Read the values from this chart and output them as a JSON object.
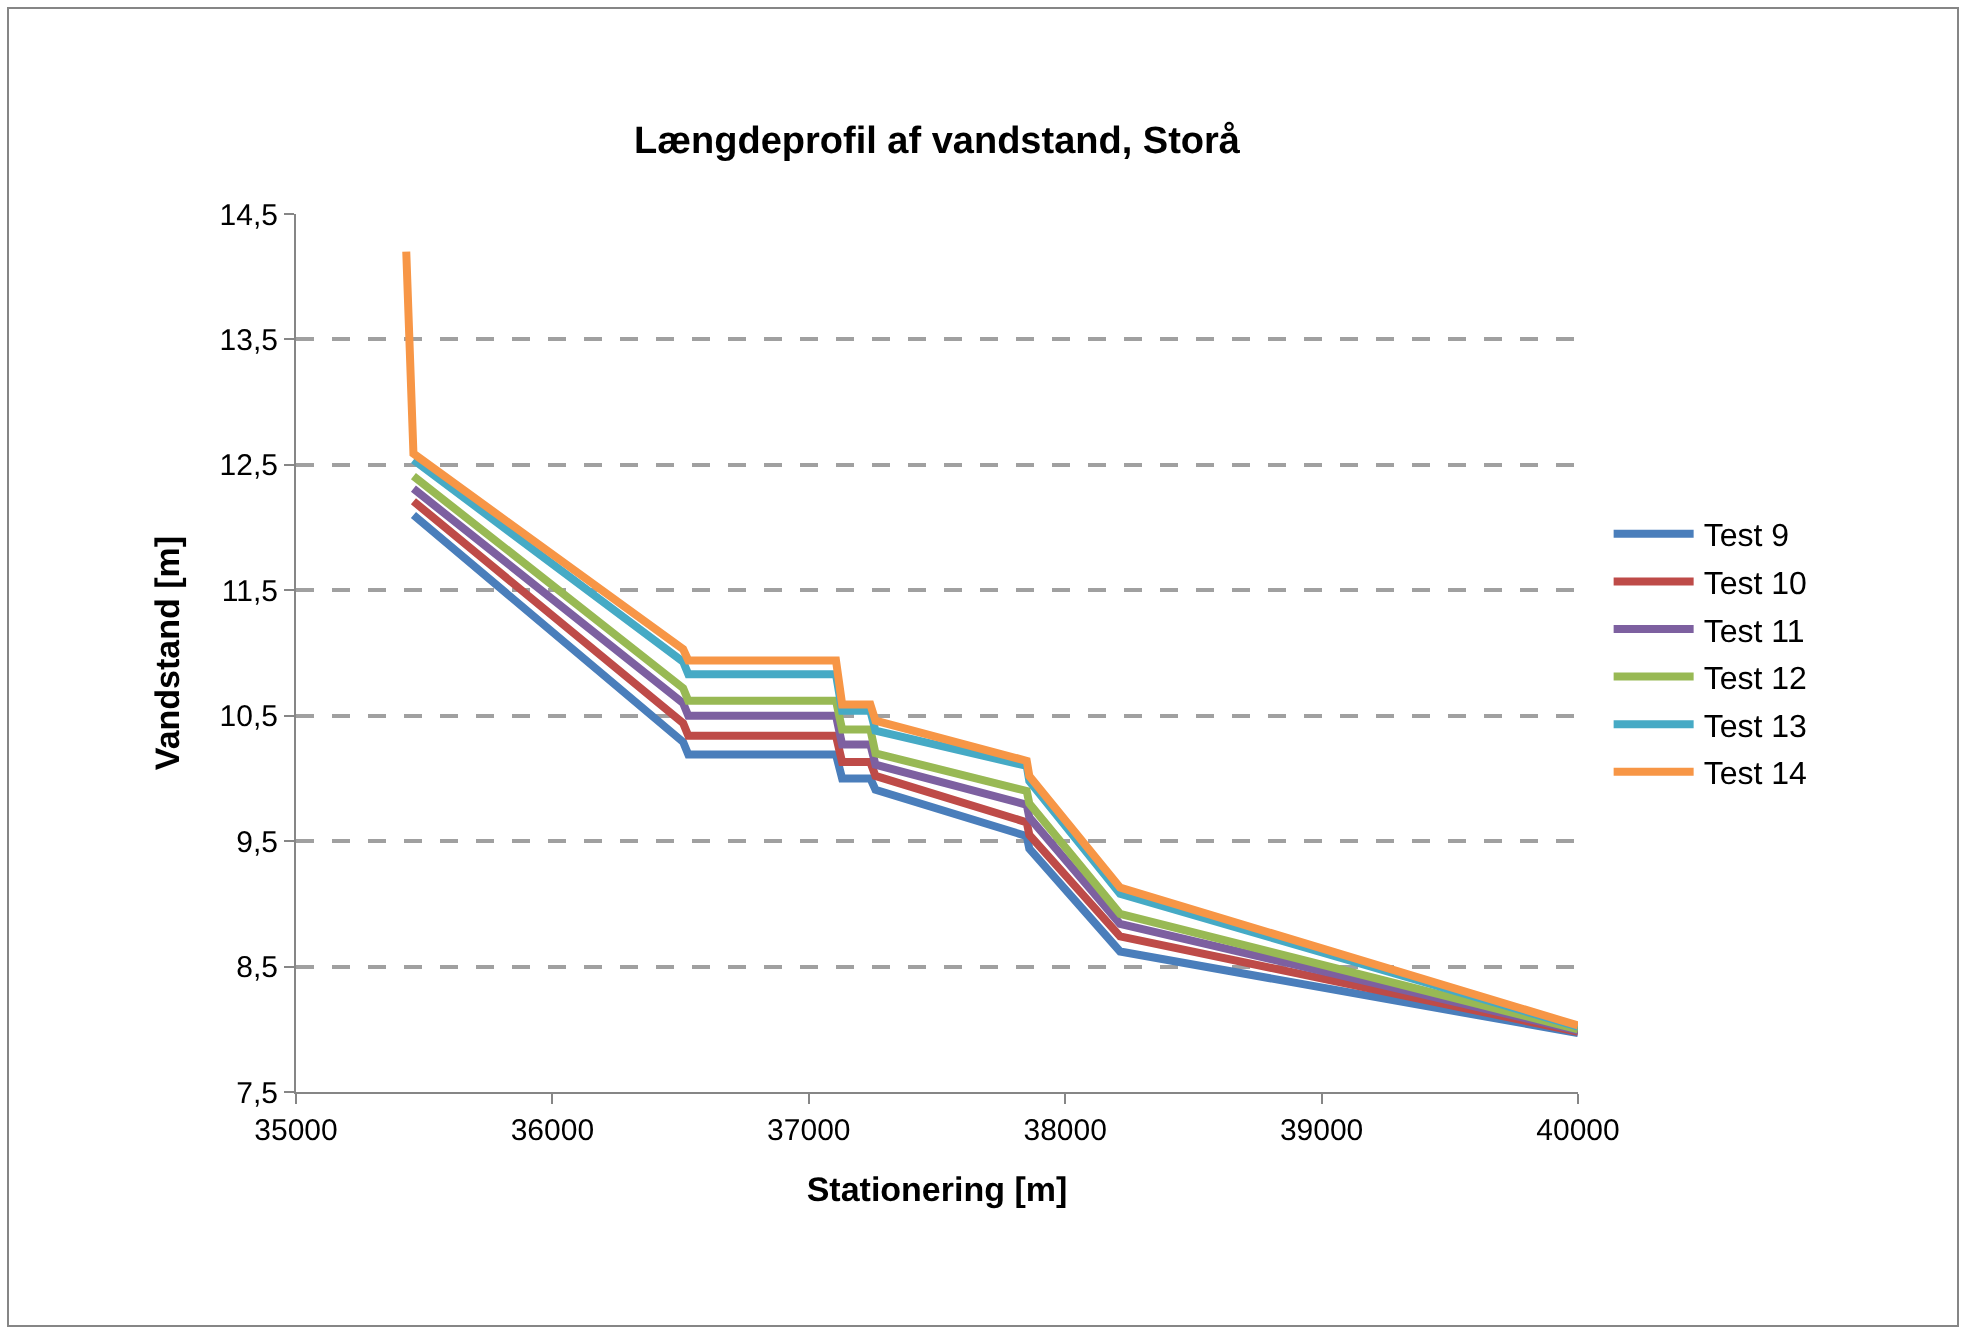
{
  "chart_data": {
    "type": "line",
    "title": "Længdeprofil af vandstand, Storå",
    "xlabel": "Stationering [m]",
    "ylabel": "Vandstand [m]",
    "x": [
      35430,
      35458,
      36510,
      36530,
      37106,
      37130,
      37240,
      37260,
      37850,
      37860,
      38214,
      40000
    ],
    "series": [
      {
        "name": "Test 9",
        "color": "#4a7ebb",
        "values": [
          null,
          12.1,
          10.29,
          10.19,
          10.19,
          10.0,
          10.0,
          9.91,
          9.54,
          9.44,
          8.62,
          7.97
        ]
      },
      {
        "name": "Test 10",
        "color": "#be4b48",
        "values": [
          null,
          12.21,
          10.44,
          10.34,
          10.34,
          10.13,
          10.13,
          10.02,
          9.65,
          9.55,
          8.74,
          7.98
        ]
      },
      {
        "name": "Test 11",
        "color": "#7d60a0",
        "values": [
          null,
          12.31,
          10.6,
          10.5,
          10.5,
          10.27,
          10.27,
          10.11,
          9.79,
          9.69,
          8.84,
          7.99
        ]
      },
      {
        "name": "Test 12",
        "color": "#98b954",
        "values": [
          null,
          12.41,
          10.72,
          10.62,
          10.62,
          10.39,
          10.39,
          10.2,
          9.9,
          9.8,
          8.92,
          8.0
        ]
      },
      {
        "name": "Test 13",
        "color": "#46aac5",
        "values": [
          null,
          12.54,
          10.93,
          10.83,
          10.83,
          10.54,
          10.54,
          10.38,
          10.1,
          9.98,
          9.08,
          8.02
        ]
      },
      {
        "name": "Test 14",
        "color": "#f79646",
        "values": [
          14.2,
          12.59,
          11.03,
          10.94,
          10.94,
          10.59,
          10.59,
          10.46,
          10.14,
          10.02,
          9.13,
          8.03
        ]
      }
    ],
    "xlim": [
      35000,
      40000
    ],
    "xticks": [
      35000,
      36000,
      37000,
      38000,
      39000,
      40000
    ],
    "ylim": [
      7.5,
      14.5
    ],
    "yticks": [
      {
        "value": 7.5,
        "label": "7,5"
      },
      {
        "value": 8.5,
        "label": "8,5"
      },
      {
        "value": 9.5,
        "label": "9,5"
      },
      {
        "value": 10.5,
        "label": "10,5"
      },
      {
        "value": 11.5,
        "label": "11,5"
      },
      {
        "value": 12.5,
        "label": "12,5"
      },
      {
        "value": 13.5,
        "label": "13,5"
      },
      {
        "value": 14.5,
        "label": "14,5"
      }
    ],
    "grid": "y",
    "legend": "right",
    "marker": "none",
    "line_style": "solid"
  }
}
